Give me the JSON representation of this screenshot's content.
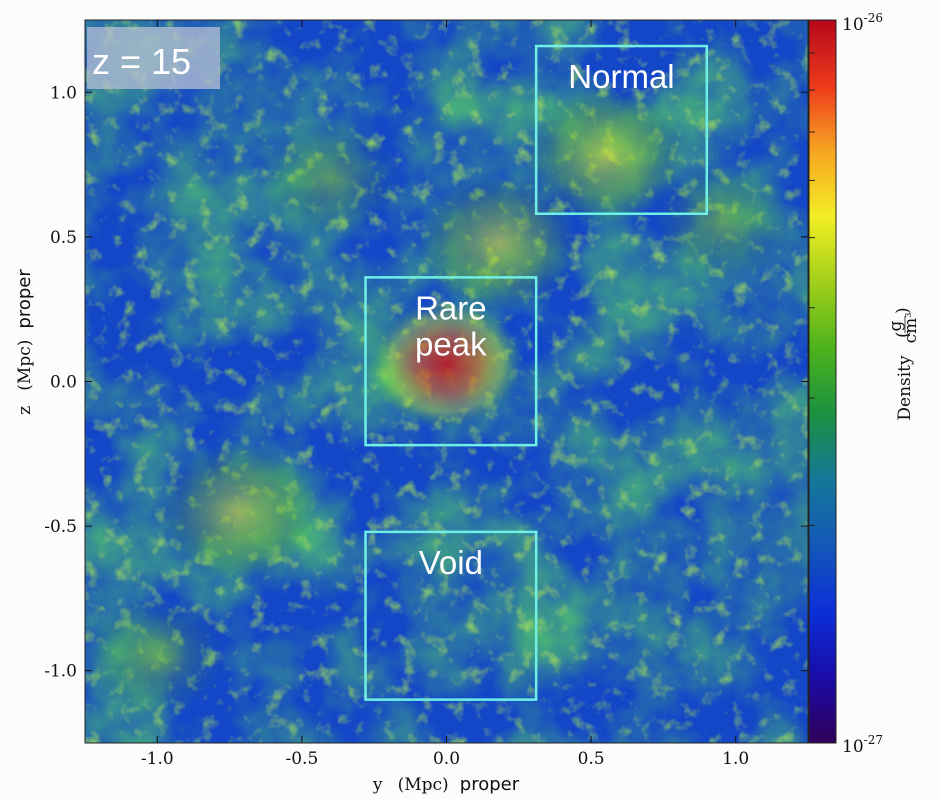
{
  "chart_data": {
    "type": "heatmap",
    "quantity": "Density",
    "redshift_label": "z = 15",
    "xlabel": {
      "variable": "y",
      "unit": "(Mpc)",
      "suffix": "proper"
    },
    "ylabel": {
      "variable": "z",
      "unit": "(Mpc)",
      "suffix": "proper"
    },
    "xlim": [
      -1.25,
      1.25
    ],
    "ylim": [
      -1.25,
      1.25
    ],
    "xticks": [
      -1.0,
      -0.5,
      0.0,
      0.5,
      1.0
    ],
    "xtick_labels": [
      "-1.0",
      "-0.5",
      "0.0",
      "0.5",
      "1.0"
    ],
    "yticks": [
      1.0,
      0.5,
      0.0,
      -0.5,
      -1.0
    ],
    "ytick_labels": [
      "1.0",
      "0.5",
      "0.0",
      "-0.5",
      "-1.0"
    ],
    "colorbar": {
      "scale": "log",
      "min": 1e-27,
      "max": 1e-26,
      "min_label": {
        "base": "10",
        "exp": "-27"
      },
      "max_label": {
        "base": "10",
        "exp": "-26"
      },
      "label": "Density",
      "unit_num": "g",
      "unit_den": "cm",
      "unit_den_exp": "3",
      "colormap": [
        "#30005a",
        "#1a0ca8",
        "#0c2fd8",
        "#1358b8",
        "#15789a",
        "#1b9140",
        "#4cb21c",
        "#a0cf1a",
        "#f2ee24",
        "#f7a622",
        "#ed3a1c",
        "#b5071a"
      ]
    },
    "regions": [
      {
        "name": "Normal",
        "lines": [
          "Normal"
        ],
        "y_range": [
          0.31,
          0.9
        ],
        "z_range": [
          0.58,
          1.16
        ]
      },
      {
        "name": "Rare peak",
        "lines": [
          "Rare",
          "peak"
        ],
        "y_range": [
          -0.28,
          0.31
        ],
        "z_range": [
          -0.22,
          0.36
        ]
      },
      {
        "name": "Void",
        "lines": [
          "Void"
        ],
        "y_range": [
          -0.28,
          0.31
        ],
        "z_range": [
          -1.1,
          -0.52
        ]
      }
    ],
    "overdense_features": [
      {
        "y": 0.0,
        "z": 0.06,
        "level": "high"
      },
      {
        "y": 0.55,
        "z": 0.78,
        "level": "medium"
      },
      {
        "y": 0.18,
        "z": 0.48,
        "level": "medium"
      },
      {
        "y": -0.72,
        "z": -0.45,
        "level": "medium"
      },
      {
        "y": -1.0,
        "z": -0.95,
        "level": "low"
      },
      {
        "y": 0.95,
        "z": 0.55,
        "level": "low"
      },
      {
        "y": -0.4,
        "z": 0.7,
        "level": "low"
      }
    ]
  }
}
